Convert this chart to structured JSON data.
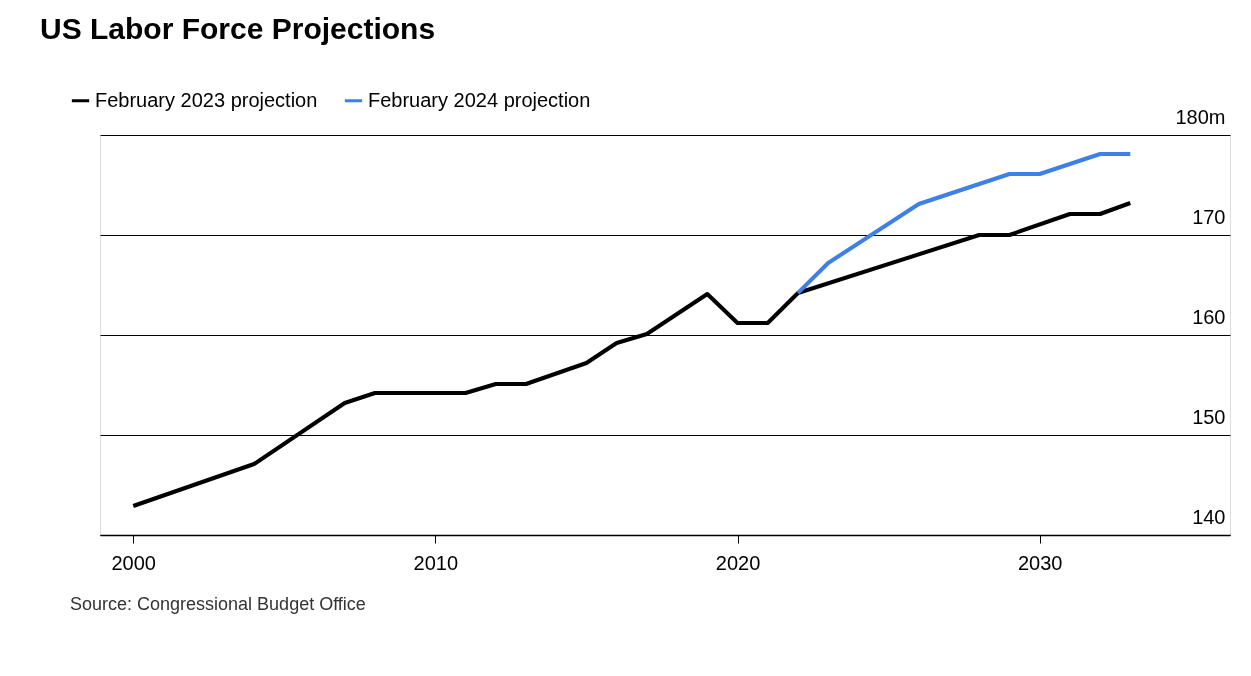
{
  "chart_data": {
    "type": "line",
    "title": "US Labor Force Projections",
    "series": [
      {
        "name": "February 2023 projection",
        "color": "#000000",
        "x": [
          2000,
          2004,
          2007,
          2008,
          2011,
          2012,
          2013,
          2015,
          2016,
          2017,
          2019,
          2020,
          2021,
          2022,
          2028,
          2029,
          2031,
          2032,
          2033
        ],
        "values": [
          142.9,
          147.1,
          153.2,
          154.2,
          154.2,
          155.1,
          155.1,
          157.2,
          159.2,
          160.1,
          164.1,
          161.2,
          161.2,
          164.2,
          170.0,
          170.0,
          172.1,
          172.1,
          173.2
        ]
      },
      {
        "name": "February 2024 projection",
        "color": "#3f7fe8",
        "x": [
          2022,
          2023,
          2026,
          2029,
          2030,
          2032,
          2033
        ],
        "values": [
          164.2,
          167.2,
          173.1,
          176.1,
          176.1,
          178.1,
          178.1
        ]
      }
    ],
    "xlim": [
      1998.9,
      2036.3
    ],
    "xticks": [
      2000,
      2010,
      2020,
      2030
    ],
    "ylim": [
      140,
      180
    ],
    "yticks": [
      140,
      150,
      160,
      170,
      {
        "value": 180,
        "label": "180m"
      }
    ],
    "grid": "y",
    "legend": "top left",
    "marker": "none",
    "line_style": "solid",
    "annotations": [
      "Source: Congressional Budget Office"
    ]
  }
}
